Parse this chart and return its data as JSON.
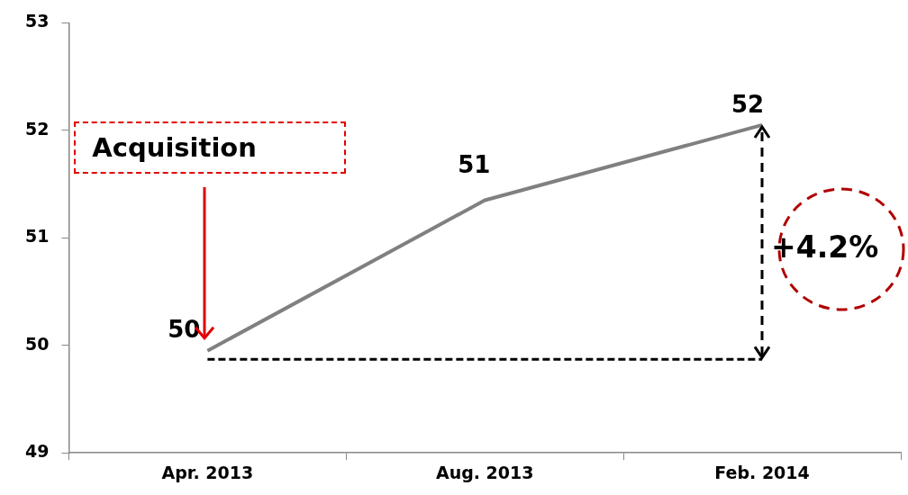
{
  "chart_data": {
    "type": "line",
    "categories": [
      "Apr. 2013",
      "Aug. 2013",
      "Feb. 2014"
    ],
    "series": [
      {
        "color": "#808080",
        "values": [
          49.95,
          51.35,
          52.05
        ],
        "value_labels": [
          "50",
          "51",
          "52"
        ]
      },
      {
        "color": "#000000",
        "line_style": "dashed",
        "values": [
          49.87,
          49.87,
          49.87
        ]
      }
    ],
    "ylim": [
      49,
      53
    ],
    "yticks": [
      49,
      50,
      51,
      52,
      53
    ],
    "grid": false,
    "legend": false,
    "marker": "none",
    "line_style": "solid",
    "annotations": [
      "Acquisition",
      "+4.2%"
    ]
  }
}
